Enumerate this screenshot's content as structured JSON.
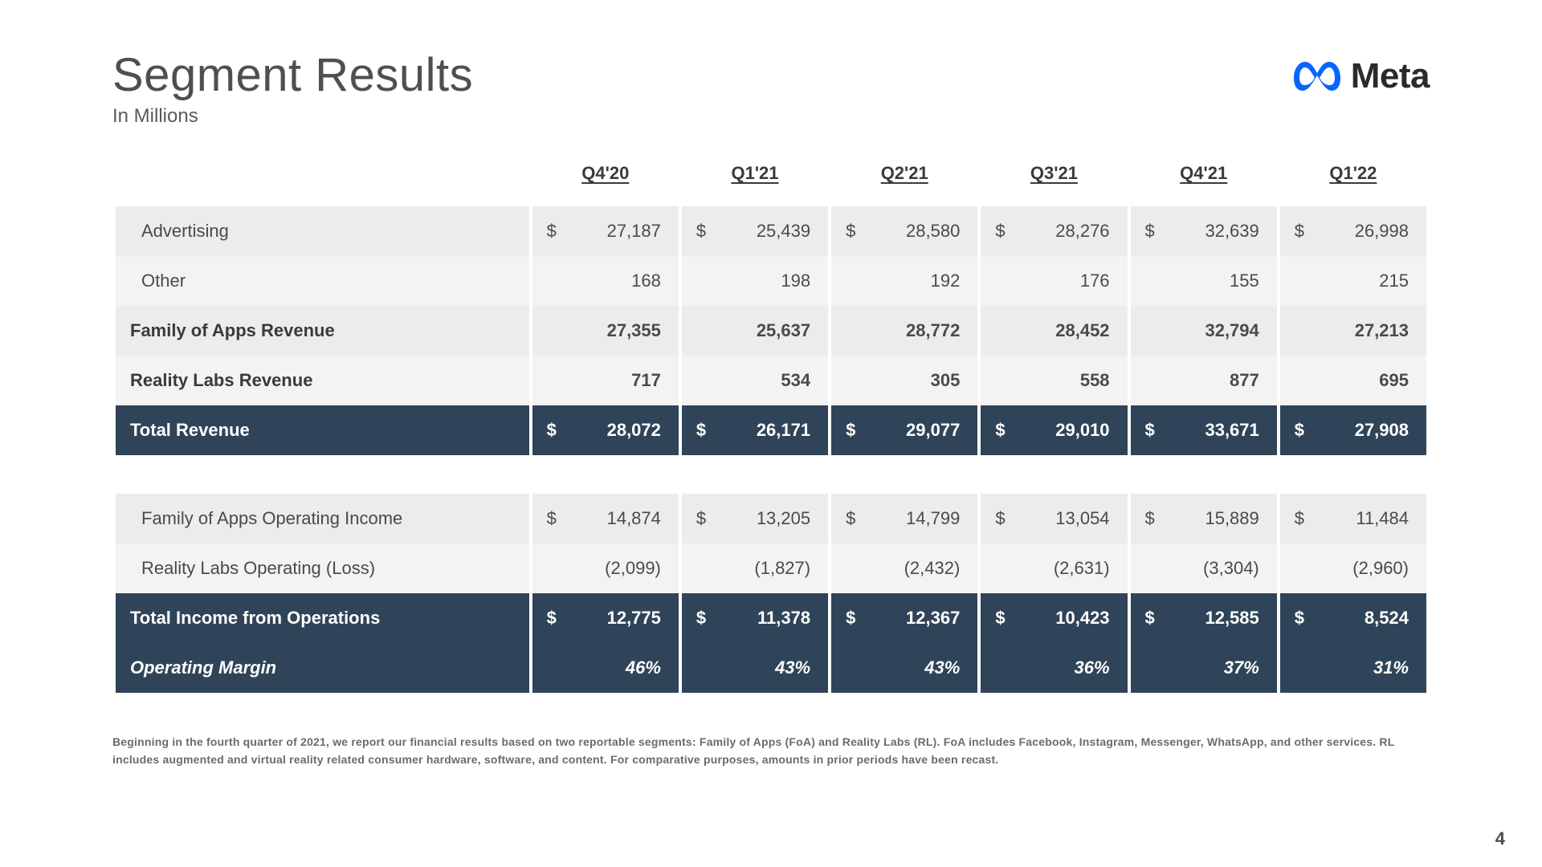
{
  "title": "Segment Results",
  "subtitle": "In Millions",
  "logo_text": "Meta",
  "logo_color": "#0866ff",
  "page_number": "4",
  "columns": [
    "Q4'20",
    "Q1'21",
    "Q2'21",
    "Q3'21",
    "Q4'21",
    "Q1'22"
  ],
  "rows": [
    {
      "label": "Advertising",
      "style": "r-a",
      "bold": false,
      "dollar": true,
      "values": [
        "27,187",
        "25,439",
        "28,580",
        "28,276",
        "32,639",
        "26,998"
      ]
    },
    {
      "label": "Other",
      "style": "r-b",
      "bold": false,
      "dollar": false,
      "values": [
        "168",
        "198",
        "192",
        "176",
        "155",
        "215"
      ]
    },
    {
      "label": "Family of Apps Revenue",
      "style": "r-a",
      "bold": true,
      "dollar": false,
      "values": [
        "27,355",
        "25,637",
        "28,772",
        "28,452",
        "32,794",
        "27,213"
      ]
    },
    {
      "label": "Reality Labs Revenue",
      "style": "r-b",
      "bold": true,
      "dollar": false,
      "values": [
        "717",
        "534",
        "305",
        "558",
        "877",
        "695"
      ]
    },
    {
      "label": "Total Revenue",
      "style": "r-dark",
      "bold": true,
      "dollar": true,
      "values": [
        "28,072",
        "26,171",
        "29,077",
        "29,010",
        "33,671",
        "27,908"
      ]
    },
    {
      "label": "",
      "style": "r-gap",
      "bold": false,
      "dollar": false,
      "values": [
        "",
        "",
        "",
        "",
        "",
        ""
      ]
    },
    {
      "label": "Family of Apps Operating Income",
      "style": "r-a",
      "bold": false,
      "dollar": true,
      "values": [
        "14,874",
        "13,205",
        "14,799",
        "13,054",
        "15,889",
        "11,484"
      ]
    },
    {
      "label": "Reality Labs Operating (Loss)",
      "style": "r-b",
      "bold": false,
      "dollar": false,
      "values": [
        "(2,099)",
        "(1,827)",
        "(2,432)",
        "(2,631)",
        "(3,304)",
        "(2,960)"
      ]
    },
    {
      "label": "Total Income from Operations",
      "style": "r-dark",
      "bold": true,
      "dollar": true,
      "values": [
        "12,775",
        "11,378",
        "12,367",
        "10,423",
        "12,585",
        "8,524"
      ]
    },
    {
      "label": "Operating Margin",
      "style": "r-darkital",
      "bold": true,
      "dollar": false,
      "values": [
        "46%",
        "43%",
        "43%",
        "36%",
        "37%",
        "31%"
      ]
    }
  ],
  "footnote": "Beginning in the fourth quarter of 2021, we report our financial results based on two reportable segments: Family of Apps (FoA) and Reality Labs (RL). FoA includes Facebook, Instagram, Messenger, WhatsApp, and other services. RL includes augmented and virtual reality related consumer hardware, software, and content. For comparative purposes, amounts in prior periods have been recast.",
  "colors": {
    "row_light_a": "#ececec",
    "row_light_b": "#f3f3f3",
    "row_dark": "#2f4458",
    "text_body": "#4a4a4a",
    "text_dark_row": "#ffffff"
  },
  "fontsizes": {
    "title": 58,
    "subtitle": 24,
    "header": 22,
    "cell": 22,
    "footnote": 14
  }
}
